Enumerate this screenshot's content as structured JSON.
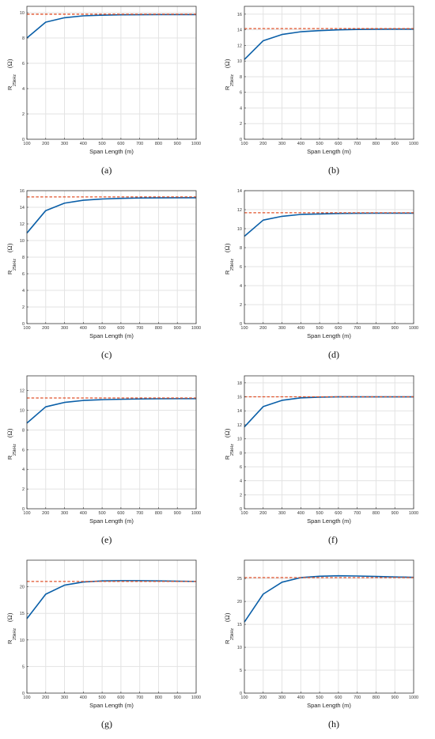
{
  "chart_data": [
    {
      "type": "line",
      "caption": "(a)",
      "xlabel": "Span Length (m)",
      "ylabel": {
        "main": "R",
        "subscript": "25kHz",
        "unit": "(Ω)"
      },
      "xlim": [
        100,
        1000
      ],
      "ylim": [
        0,
        10.5
      ],
      "xticks": [
        100,
        200,
        300,
        400,
        500,
        600,
        700,
        800,
        900,
        1000
      ],
      "yticks": [
        0,
        2,
        4,
        6,
        8,
        10
      ],
      "grid": true,
      "series": [
        {
          "style": "solid",
          "color": "#0a5fa8",
          "x": [
            100,
            200,
            300,
            400,
            500,
            600,
            700,
            800,
            900,
            1000
          ],
          "y": [
            8.0,
            9.25,
            9.6,
            9.75,
            9.8,
            9.83,
            9.84,
            9.85,
            9.85,
            9.85
          ]
        },
        {
          "style": "dashed",
          "color": "#e0522a",
          "x": [
            100,
            1000
          ],
          "y": [
            9.88,
            9.88
          ]
        }
      ]
    },
    {
      "type": "line",
      "caption": "(b)",
      "xlabel": "Span Length (m)",
      "ylabel": {
        "main": "R",
        "subscript": "25kHz",
        "unit": "(Ω)"
      },
      "xlim": [
        100,
        1000
      ],
      "ylim": [
        0,
        17
      ],
      "xticks": [
        100,
        200,
        300,
        400,
        500,
        600,
        700,
        800,
        900,
        1000
      ],
      "yticks": [
        0,
        2,
        4,
        6,
        8,
        10,
        12,
        14,
        16
      ],
      "grid": true,
      "series": [
        {
          "style": "solid",
          "color": "#0a5fa8",
          "x": [
            100,
            200,
            300,
            400,
            500,
            600,
            700,
            800,
            900,
            1000
          ],
          "y": [
            10.2,
            12.6,
            13.4,
            13.75,
            13.9,
            14.0,
            14.05,
            14.07,
            14.08,
            14.08
          ]
        },
        {
          "style": "dashed",
          "color": "#e0522a",
          "x": [
            100,
            1000
          ],
          "y": [
            14.15,
            14.15
          ]
        }
      ]
    },
    {
      "type": "line",
      "caption": "(c)",
      "xlabel": "Span Length (m)",
      "ylabel": {
        "main": "R",
        "subscript": "25kHz",
        "unit": "(Ω)"
      },
      "xlim": [
        100,
        1000
      ],
      "ylim": [
        0,
        16
      ],
      "xticks": [
        100,
        200,
        300,
        400,
        500,
        600,
        700,
        800,
        900,
        1000
      ],
      "yticks": [
        0,
        2,
        4,
        6,
        8,
        10,
        12,
        14,
        16
      ],
      "grid": true,
      "series": [
        {
          "style": "solid",
          "color": "#0a5fa8",
          "x": [
            100,
            200,
            300,
            400,
            500,
            600,
            700,
            800,
            900,
            1000
          ],
          "y": [
            10.9,
            13.6,
            14.5,
            14.85,
            15.0,
            15.08,
            15.12,
            15.14,
            15.15,
            15.15
          ]
        },
        {
          "style": "dashed",
          "color": "#e0522a",
          "x": [
            100,
            1000
          ],
          "y": [
            15.25,
            15.25
          ]
        }
      ]
    },
    {
      "type": "line",
      "caption": "(d)",
      "xlabel": "Span Length (m)",
      "ylabel": {
        "main": "R",
        "subscript": "25kHz",
        "unit": "(Ω)"
      },
      "xlim": [
        100,
        1000
      ],
      "ylim": [
        0,
        14
      ],
      "xticks": [
        100,
        200,
        300,
        400,
        500,
        600,
        700,
        800,
        900,
        1000
      ],
      "yticks": [
        0,
        2,
        4,
        6,
        8,
        10,
        12,
        14
      ],
      "grid": true,
      "series": [
        {
          "style": "solid",
          "color": "#0a5fa8",
          "x": [
            100,
            200,
            300,
            400,
            500,
            600,
            700,
            800,
            900,
            1000
          ],
          "y": [
            9.2,
            10.9,
            11.3,
            11.5,
            11.55,
            11.6,
            11.62,
            11.63,
            11.63,
            11.63
          ]
        },
        {
          "style": "dashed",
          "color": "#e0522a",
          "x": [
            100,
            1000
          ],
          "y": [
            11.68,
            11.68
          ]
        }
      ]
    },
    {
      "type": "line",
      "caption": "(e)",
      "xlabel": "Span Length (m)",
      "ylabel": {
        "main": "R",
        "subscript": "25kHz",
        "unit": "(Ω)"
      },
      "xlim": [
        100,
        1000
      ],
      "ylim": [
        0,
        13.5
      ],
      "xticks": [
        100,
        200,
        300,
        400,
        500,
        600,
        700,
        800,
        900,
        1000
      ],
      "yticks": [
        0,
        2,
        4,
        6,
        8,
        10,
        12
      ],
      "grid": true,
      "series": [
        {
          "style": "solid",
          "color": "#0a5fa8",
          "x": [
            100,
            200,
            300,
            400,
            500,
            600,
            700,
            800,
            900,
            1000
          ],
          "y": [
            8.7,
            10.35,
            10.8,
            11.0,
            11.08,
            11.12,
            11.15,
            11.17,
            11.18,
            11.18
          ]
        },
        {
          "style": "dashed",
          "color": "#e0522a",
          "x": [
            100,
            1000
          ],
          "y": [
            11.25,
            11.25
          ]
        }
      ]
    },
    {
      "type": "line",
      "caption": "(f)",
      "xlabel": "Span Length (m)",
      "ylabel": {
        "main": "R",
        "subscript": "25kHz",
        "unit": "(Ω)"
      },
      "xlim": [
        100,
        1000
      ],
      "ylim": [
        0,
        19
      ],
      "xticks": [
        100,
        200,
        300,
        400,
        500,
        600,
        700,
        800,
        900,
        1000
      ],
      "yticks": [
        0,
        2,
        4,
        6,
        8,
        10,
        12,
        14,
        16,
        18
      ],
      "grid": true,
      "series": [
        {
          "style": "solid",
          "color": "#0a5fa8",
          "x": [
            100,
            200,
            300,
            400,
            500,
            600,
            700,
            800,
            900,
            1000
          ],
          "y": [
            11.7,
            14.6,
            15.5,
            15.85,
            15.95,
            16.0,
            16.0,
            16.0,
            16.0,
            16.0
          ]
        },
        {
          "style": "dashed",
          "color": "#e0522a",
          "x": [
            100,
            1000
          ],
          "y": [
            16.0,
            16.0
          ]
        }
      ]
    },
    {
      "type": "line",
      "caption": "(g)",
      "xlabel": "Span Length (m)",
      "ylabel": {
        "main": "R",
        "subscript": "25kHz",
        "unit": "(Ω)"
      },
      "xlim": [
        100,
        1000
      ],
      "ylim": [
        0,
        25
      ],
      "xticks": [
        100,
        200,
        300,
        400,
        500,
        600,
        700,
        800,
        900,
        1000
      ],
      "yticks": [
        0,
        5,
        10,
        15,
        20
      ],
      "grid": true,
      "series": [
        {
          "style": "solid",
          "color": "#0a5fa8",
          "x": [
            100,
            200,
            300,
            400,
            500,
            600,
            700,
            800,
            900,
            1000
          ],
          "y": [
            14.0,
            18.6,
            20.3,
            20.9,
            21.1,
            21.15,
            21.15,
            21.1,
            21.05,
            21.0
          ]
        },
        {
          "style": "dashed",
          "color": "#e0522a",
          "x": [
            100,
            1000
          ],
          "y": [
            21.0,
            21.0
          ]
        }
      ]
    },
    {
      "type": "line",
      "caption": "(h)",
      "xlabel": "Span Length (m)",
      "ylabel": {
        "main": "R",
        "subscript": "25kHz",
        "unit": "(Ω)"
      },
      "xlim": [
        100,
        1000
      ],
      "ylim": [
        0,
        29
      ],
      "xticks": [
        100,
        200,
        300,
        400,
        500,
        600,
        700,
        800,
        900,
        1000
      ],
      "yticks": [
        0,
        5,
        10,
        15,
        20,
        25
      ],
      "grid": true,
      "series": [
        {
          "style": "solid",
          "color": "#0a5fa8",
          "x": [
            100,
            200,
            300,
            400,
            500,
            600,
            700,
            800,
            900,
            1000
          ],
          "y": [
            15.5,
            21.6,
            24.2,
            25.2,
            25.5,
            25.6,
            25.55,
            25.45,
            25.35,
            25.25
          ]
        },
        {
          "style": "dashed",
          "color": "#e0522a",
          "x": [
            100,
            1000
          ],
          "y": [
            25.2,
            25.2
          ]
        }
      ]
    }
  ]
}
